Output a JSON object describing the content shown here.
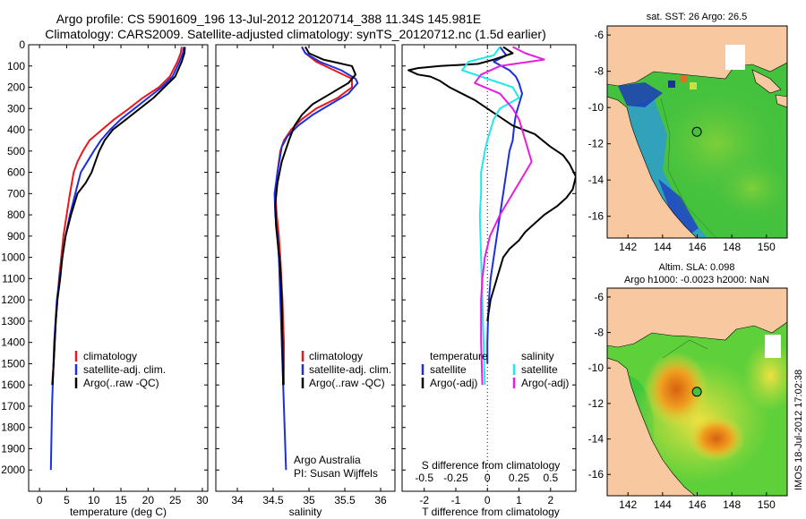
{
  "title_line1": "Argo profile: CS 5901609_196 13-Jul-2012 20120714_388 11.34S 145.981E",
  "title_line2": "Climatology: CARS2009. Satellite-adjusted climatology: synTS_20120712.nc (1.5d earlier)",
  "timestamp": "IMOS 18-Jul-2012 17:02:38",
  "colors": {
    "climatology": "#e8181c",
    "satellite": "#1c2fe0",
    "argo": "#000000",
    "salinity_sat": "#22e8e8",
    "salinity_argo": "#e61ee0",
    "land": "#f8c8a0",
    "sea_green": "#3ec83e"
  },
  "chart_data": [
    {
      "type": "line",
      "name": "temperature-panel",
      "xlabel": "temperature (deg C)",
      "xlim": [
        -2,
        31
      ],
      "xticks": [
        0,
        5,
        10,
        15,
        20,
        25,
        30
      ],
      "ylim": [
        2100,
        0
      ],
      "yticks": [
        0,
        100,
        200,
        300,
        400,
        500,
        600,
        700,
        800,
        900,
        1000,
        1100,
        1200,
        1300,
        1400,
        1500,
        1600,
        1700,
        1800,
        1900,
        2000
      ],
      "legend": [
        "climatology",
        "satellite-adj. clim.",
        "Argo(..raw -QC)"
      ],
      "series": [
        {
          "name": "climatology",
          "color": "climatology",
          "x": [
            26.2,
            26,
            25.4,
            24,
            22,
            19,
            16.5,
            13.8,
            11.5,
            9.2,
            8,
            7,
            6.3,
            5.6,
            5,
            4.4,
            4,
            3.6,
            3.3,
            3,
            2.8,
            2.6,
            2.3
          ],
          "y": [
            10,
            40,
            80,
            150,
            200,
            250,
            300,
            350,
            400,
            450,
            500,
            550,
            600,
            700,
            800,
            900,
            1000,
            1100,
            1200,
            1300,
            1400,
            1500,
            1600
          ]
        },
        {
          "name": "satellite-adj. clim.",
          "color": "satellite",
          "x": [
            26.6,
            26.4,
            25.8,
            24.5,
            22.5,
            20,
            17.5,
            15,
            13,
            11.3,
            10,
            8.8,
            7.6,
            6.6,
            5.6,
            4.8,
            4.2,
            3.7,
            3.2,
            2.7,
            2.3,
            2.1
          ],
          "y": [
            10,
            40,
            80,
            150,
            200,
            250,
            300,
            350,
            400,
            450,
            500,
            550,
            600,
            700,
            800,
            900,
            1000,
            1100,
            1200,
            1400,
            1700,
            2000
          ]
        },
        {
          "name": "Argo(..raw -QC)",
          "color": "argo",
          "x": [
            26.8,
            26.7,
            26.2,
            25,
            23,
            21,
            18.5,
            16,
            13.5,
            12,
            11,
            10.3,
            9.6,
            8.5,
            7,
            5.8,
            4.8,
            4.2,
            3.8,
            3.3,
            3,
            2.8,
            2.6,
            2.4
          ],
          "y": [
            10,
            40,
            80,
            150,
            200,
            250,
            300,
            350,
            400,
            450,
            500,
            550,
            600,
            650,
            700,
            800,
            900,
            1000,
            1100,
            1200,
            1300,
            1400,
            1500,
            1600
          ]
        }
      ]
    },
    {
      "type": "line",
      "name": "salinity-panel",
      "xlabel": "salinity",
      "xlim": [
        33.7,
        36.2
      ],
      "xticks": [
        34,
        34.5,
        35,
        35.5,
        36
      ],
      "ylim": [
        2100,
        0
      ],
      "legend": [
        "climatology",
        "satellite-adj. clim.",
        "Argo(..raw -QC)"
      ],
      "annotations": [
        "Argo Australia",
        "PI: Susan Wijffels"
      ],
      "series": [
        {
          "name": "climatology",
          "color": "climatology",
          "x": [
            34.9,
            34.95,
            35.1,
            35.35,
            35.6,
            35.6,
            35.4,
            35.1,
            34.9,
            34.75,
            34.65,
            34.6,
            34.56,
            34.53,
            34.55,
            34.58,
            34.6,
            34.63,
            34.65,
            34.65
          ],
          "y": [
            10,
            40,
            80,
            120,
            160,
            200,
            250,
            300,
            350,
            400,
            450,
            500,
            600,
            700,
            800,
            900,
            1000,
            1200,
            1400,
            1600
          ]
        },
        {
          "name": "satellite-adj. clim.",
          "color": "satellite",
          "x": [
            34.9,
            34.95,
            35.15,
            35.45,
            35.65,
            35.68,
            35.55,
            35.3,
            35.05,
            34.85,
            34.7,
            34.62,
            34.56,
            34.52,
            34.53,
            34.56,
            34.58,
            34.6,
            34.63,
            34.66,
            34.68
          ],
          "y": [
            10,
            40,
            80,
            120,
            160,
            180,
            230,
            280,
            330,
            380,
            430,
            480,
            600,
            700,
            800,
            900,
            1000,
            1200,
            1500,
            1800,
            2000
          ]
        },
        {
          "name": "Argo(..raw -QC)",
          "color": "argo",
          "x": [
            34.95,
            35,
            35.2,
            35.6,
            35.65,
            35.55,
            35.3,
            35.05,
            34.9,
            34.8,
            34.72,
            34.62,
            34.56,
            34.53,
            34.54,
            34.57,
            34.6,
            34.62,
            34.63,
            34.64
          ],
          "y": [
            10,
            40,
            70,
            100,
            140,
            180,
            230,
            280,
            330,
            380,
            450,
            550,
            650,
            750,
            850,
            950,
            1050,
            1200,
            1400,
            1600
          ]
        }
      ]
    },
    {
      "type": "line",
      "name": "difference-panel",
      "xlabel": "T difference from climatology",
      "xlabel2": "S difference from climatology",
      "xlim": [
        -2.7,
        2.8
      ],
      "xticks": [
        -2,
        -1,
        0,
        1,
        2
      ],
      "sticks": [
        -0.5,
        -0.25,
        0,
        0.25,
        0.5
      ],
      "sticklabels": [
        "-0.5",
        "-0.25",
        "0",
        "0.25",
        "0.5"
      ],
      "ylim": [
        2100,
        0
      ],
      "legend_temperature": {
        "header": "temperature",
        "items": [
          "satellite",
          "Argo(-adj)"
        ]
      },
      "legend_salinity": {
        "header": "salinity",
        "items": [
          "satellite",
          "Argo(-adj)"
        ]
      },
      "series": [
        {
          "name": "T satellite",
          "color": "satellite",
          "x": [
            0.4,
            0.6,
            0.2,
            0.7,
            0.9,
            1.0,
            1.1,
            1.0,
            0.9,
            0.85,
            0.8,
            0.7,
            0.6,
            0.5,
            0.4,
            0.3,
            0.2,
            0.1,
            0.05,
            0.02,
            0.0,
            0.0
          ],
          "y": [
            10,
            50,
            80,
            120,
            150,
            180,
            230,
            280,
            330,
            380,
            450,
            500,
            600,
            700,
            800,
            900,
            1000,
            1100,
            1200,
            1300,
            1400,
            1500
          ]
        },
        {
          "name": "T Argo(-adj)",
          "color": "argo",
          "x": [
            0.5,
            0.8,
            0.2,
            -0.3,
            -1.5,
            -2.2,
            -2.5,
            -2.2,
            -1.8,
            -1.5,
            -1.2,
            -0.8,
            -0.4,
            0.0,
            0.3,
            0.8,
            1.5,
            2.0,
            2.4,
            2.6,
            2.8,
            2.7,
            2.5,
            2.2,
            1.8,
            1.5,
            1.2,
            1.0,
            0.7,
            0.5,
            0.3,
            0.1,
            0.0
          ],
          "y": [
            10,
            40,
            70,
            90,
            100,
            110,
            120,
            140,
            150,
            170,
            200,
            230,
            260,
            300,
            330,
            380,
            420,
            480,
            520,
            560,
            620,
            680,
            720,
            760,
            800,
            840,
            880,
            920,
            960,
            1000,
            1100,
            1200,
            1300
          ]
        },
        {
          "name": "S satellite",
          "color": "salinity_sat",
          "x": [
            0.1,
            0.05,
            -0.15,
            -0.2,
            0.0,
            0.2,
            0.25,
            0.1,
            0.05,
            0.0,
            -0.02,
            -0.05,
            -0.05,
            -0.06,
            -0.05,
            -0.04,
            -0.03,
            -0.02
          ],
          "y": [
            10,
            50,
            80,
            120,
            160,
            200,
            250,
            300,
            350,
            450,
            500,
            600,
            700,
            800,
            1000,
            1200,
            1400,
            1600
          ]
        },
        {
          "name": "S Argo(-adj)",
          "color": "salinity_argo",
          "x": [
            0.2,
            0.3,
            0.45,
            0.1,
            -0.05,
            -0.1,
            0.1,
            0.2,
            0.25,
            0.3,
            0.35,
            0.3,
            0.2,
            0.1,
            0.02,
            -0.02,
            -0.04,
            -0.05,
            -0.05,
            -0.04
          ],
          "y": [
            10,
            40,
            70,
            100,
            140,
            180,
            230,
            300,
            350,
            450,
            550,
            600,
            700,
            800,
            900,
            1000,
            1100,
            1200,
            1400,
            1600
          ]
        }
      ]
    },
    {
      "type": "heatmap",
      "name": "sst-map",
      "title": "sat. SST: 26 Argo: 26.5",
      "xlim": [
        140.8,
        151.2
      ],
      "ylim": [
        -17.2,
        -5.5
      ],
      "xticks": [
        142,
        144,
        146,
        148,
        150
      ],
      "yticks": [
        -6,
        -8,
        -10,
        -12,
        -14,
        -16
      ],
      "argo_position": {
        "lon": 145.981,
        "lat": -11.34
      }
    },
    {
      "type": "heatmap",
      "name": "sla-map",
      "title_line1": "Altim. SLA: 0.098",
      "title_line2": "Argo h1000: -0.0023 h2000: NaN",
      "xlim": [
        140.8,
        151.2
      ],
      "ylim": [
        -17.2,
        -5.5
      ],
      "xticks": [
        142,
        144,
        146,
        148,
        150
      ],
      "yticks": [
        -6,
        -8,
        -10,
        -12,
        -14,
        -16
      ],
      "argo_position": {
        "lon": 145.981,
        "lat": -11.34
      }
    }
  ]
}
